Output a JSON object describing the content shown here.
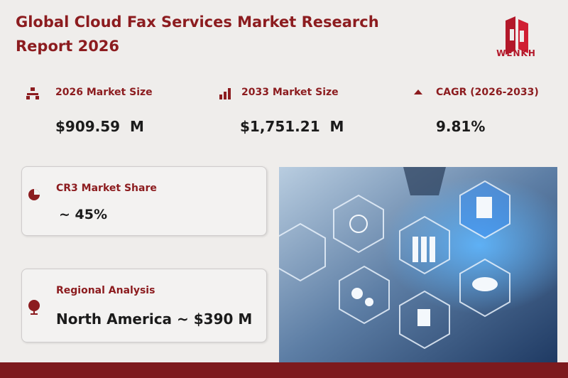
{
  "header": {
    "title": "Global Cloud Fax Services Market Research Report 2026",
    "logo": "WENKH"
  },
  "stats": [
    {
      "label": "2026 Market Size",
      "value": "$909.59  M"
    },
    {
      "label": "2033 Market Size",
      "value": "$1,751.21  M"
    },
    {
      "label": "CAGR (2026-2033)",
      "value": "9.81%"
    }
  ],
  "cards": [
    {
      "label": "CR3 Market Share",
      "value": "~ 45%"
    },
    {
      "label": "Regional Analysis",
      "value": "North America ~ $390 M"
    }
  ]
}
